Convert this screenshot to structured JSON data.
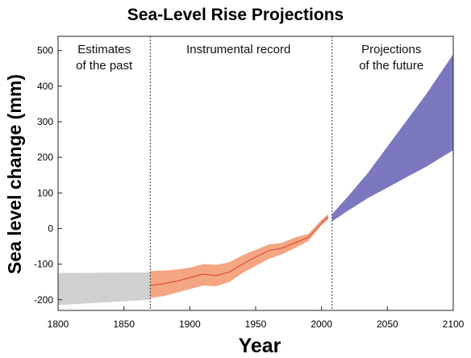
{
  "chart_data": {
    "type": "area",
    "title": "Sea-Level Rise Projections",
    "xlabel": "Year",
    "ylabel": "Sea level change (mm)",
    "xlim": [
      1800,
      2100
    ],
    "ylim": [
      -230,
      540
    ],
    "x_ticks": [
      "1800",
      "1850",
      "1900",
      "1950",
      "2000",
      "2050",
      "2100"
    ],
    "x_tick_values": [
      1800,
      1850,
      1900,
      1950,
      2000,
      2050,
      2100
    ],
    "y_ticks": [
      "-200",
      "-100",
      "0",
      "100",
      "200",
      "300",
      "400",
      "500"
    ],
    "y_tick_values": [
      -200,
      -100,
      0,
      100,
      200,
      300,
      400,
      500
    ],
    "dividers": [
      1870,
      2008
    ],
    "regions": [
      {
        "lines": [
          "Estimates",
          "of the past"
        ],
        "x_center": 1835
      },
      {
        "lines": [
          "Instrumental record"
        ],
        "x_center": 1937
      },
      {
        "lines": [
          "Projections",
          "of the future"
        ],
        "x_center": 2053
      }
    ],
    "series": [
      {
        "kind": "band",
        "color": "#cfd0d2",
        "x": [
          1800,
          1870
        ],
        "upper": [
          -125,
          -123
        ],
        "lower": [
          -215,
          -200
        ]
      },
      {
        "kind": "band_with_line",
        "color": "#f4a582",
        "line_color": "#d6402b",
        "x": [
          1870,
          1880,
          1890,
          1900,
          1910,
          1920,
          1930,
          1940,
          1950,
          1960,
          1970,
          1980,
          1990,
          2000,
          2005
        ],
        "upper": [
          -120,
          -118,
          -115,
          -110,
          -100,
          -102,
          -95,
          -75,
          -60,
          -45,
          -40,
          -25,
          -15,
          25,
          40
        ],
        "lower": [
          -195,
          -190,
          -180,
          -170,
          -160,
          -162,
          -150,
          -125,
          -105,
          -85,
          -72,
          -55,
          -35,
          10,
          25
        ],
        "center": [
          -160,
          -155,
          -148,
          -138,
          -128,
          -132,
          -122,
          -100,
          -80,
          -62,
          -55,
          -40,
          -25,
          15,
          33
        ]
      },
      {
        "kind": "band",
        "color": "#7b78bf",
        "x": [
          2008,
          2020,
          2035,
          2050,
          2065,
          2080,
          2100
        ],
        "upper": [
          40,
          90,
          155,
          230,
          305,
          380,
          490
        ],
        "lower": [
          20,
          50,
          85,
          115,
          145,
          175,
          220
        ]
      }
    ],
    "grid": false
  }
}
